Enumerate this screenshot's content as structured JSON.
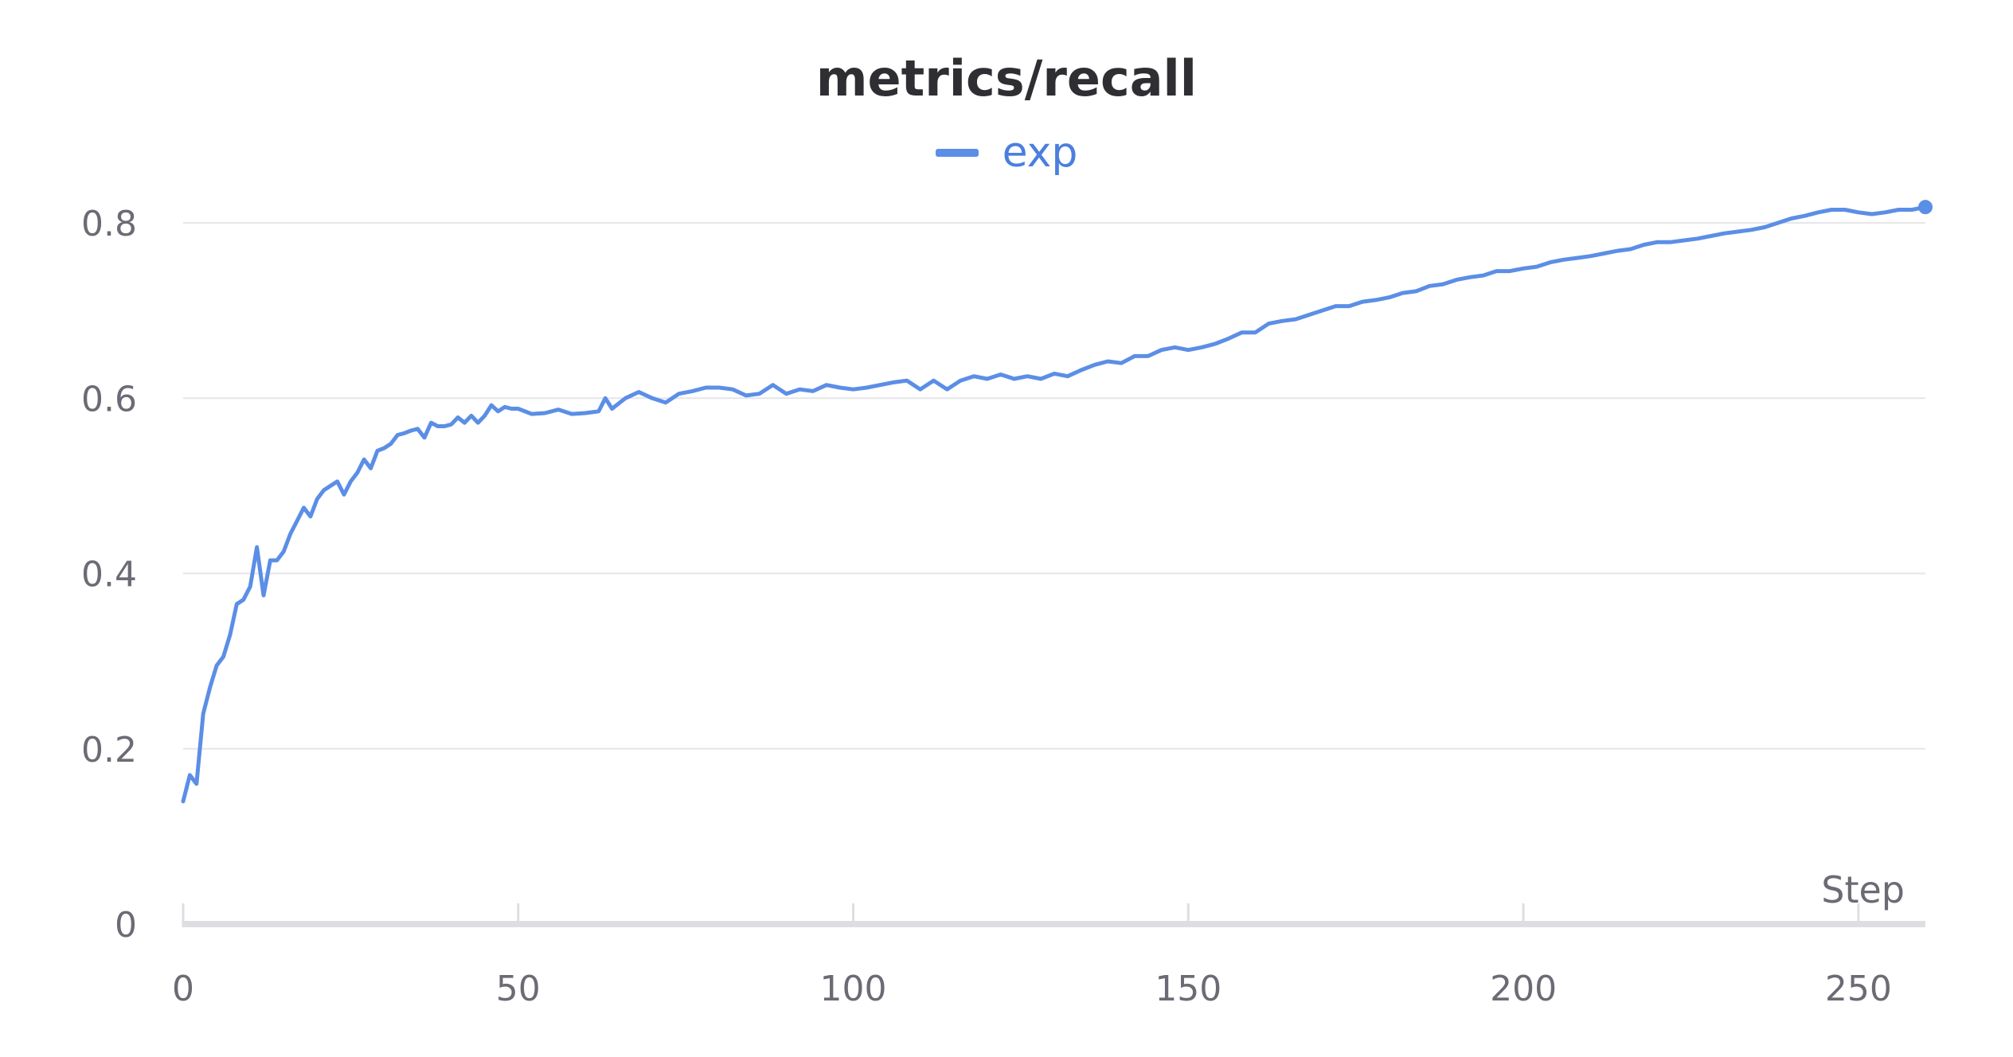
{
  "chart_data": {
    "type": "line",
    "title": "metrics/recall",
    "xlabel": "Step",
    "ylabel": "",
    "xlim": [
      0,
      260
    ],
    "ylim": [
      0,
      0.8
    ],
    "x_ticks": [
      0,
      50,
      100,
      150,
      200,
      250
    ],
    "y_ticks": [
      0,
      0.2,
      0.4,
      0.6,
      0.8
    ],
    "x_tick_labels": [
      "0",
      "50",
      "100",
      "150",
      "200",
      "250"
    ],
    "y_tick_labels": [
      "0",
      "0.2",
      "0.4",
      "0.6",
      "0.8"
    ],
    "legend_position": "top-center",
    "grid": true,
    "series": [
      {
        "name": "exp",
        "color": "#5b8ee6",
        "x": [
          0,
          1,
          2,
          3,
          4,
          5,
          6,
          7,
          8,
          9,
          10,
          11,
          12,
          13,
          14,
          15,
          16,
          17,
          18,
          19,
          20,
          21,
          22,
          23,
          24,
          25,
          26,
          27,
          28,
          29,
          30,
          31,
          32,
          33,
          34,
          35,
          36,
          37,
          38,
          39,
          40,
          41,
          42,
          43,
          44,
          45,
          46,
          47,
          48,
          49,
          50,
          52,
          54,
          56,
          58,
          60,
          62,
          63,
          64,
          66,
          68,
          70,
          72,
          74,
          76,
          78,
          80,
          82,
          84,
          86,
          88,
          90,
          92,
          94,
          96,
          98,
          100,
          102,
          104,
          106,
          108,
          110,
          112,
          114,
          116,
          118,
          120,
          122,
          124,
          126,
          128,
          130,
          132,
          134,
          136,
          138,
          140,
          142,
          144,
          146,
          148,
          150,
          152,
          154,
          156,
          158,
          160,
          162,
          164,
          166,
          168,
          170,
          172,
          174,
          176,
          178,
          180,
          182,
          184,
          186,
          188,
          190,
          192,
          194,
          196,
          198,
          200,
          202,
          204,
          206,
          208,
          210,
          212,
          214,
          216,
          218,
          220,
          222,
          224,
          226,
          228,
          230,
          232,
          234,
          236,
          238,
          240,
          242,
          244,
          246,
          248,
          250,
          252,
          254,
          256,
          258,
          260
        ],
        "y": [
          0.14,
          0.17,
          0.16,
          0.24,
          0.27,
          0.295,
          0.305,
          0.33,
          0.365,
          0.37,
          0.385,
          0.43,
          0.375,
          0.415,
          0.415,
          0.425,
          0.445,
          0.46,
          0.475,
          0.465,
          0.485,
          0.495,
          0.5,
          0.505,
          0.49,
          0.505,
          0.515,
          0.53,
          0.52,
          0.54,
          0.543,
          0.548,
          0.558,
          0.56,
          0.563,
          0.565,
          0.555,
          0.572,
          0.568,
          0.568,
          0.57,
          0.578,
          0.572,
          0.58,
          0.572,
          0.58,
          0.592,
          0.585,
          0.59,
          0.588,
          0.588,
          0.582,
          0.583,
          0.587,
          0.582,
          0.583,
          0.585,
          0.6,
          0.588,
          0.6,
          0.607,
          0.6,
          0.595,
          0.605,
          0.608,
          0.612,
          0.612,
          0.61,
          0.603,
          0.605,
          0.615,
          0.605,
          0.61,
          0.608,
          0.615,
          0.612,
          0.61,
          0.612,
          0.615,
          0.618,
          0.62,
          0.61,
          0.62,
          0.61,
          0.62,
          0.625,
          0.622,
          0.627,
          0.622,
          0.625,
          0.622,
          0.628,
          0.625,
          0.632,
          0.638,
          0.642,
          0.64,
          0.648,
          0.648,
          0.655,
          0.658,
          0.655,
          0.658,
          0.662,
          0.668,
          0.675,
          0.675,
          0.685,
          0.688,
          0.69,
          0.695,
          0.7,
          0.705,
          0.705,
          0.71,
          0.712,
          0.715,
          0.72,
          0.722,
          0.728,
          0.73,
          0.735,
          0.738,
          0.74,
          0.745,
          0.745,
          0.748,
          0.75,
          0.755,
          0.758,
          0.76,
          0.762,
          0.765,
          0.768,
          0.77,
          0.775,
          0.778,
          0.778,
          0.78,
          0.782,
          0.785,
          0.788,
          0.79,
          0.792,
          0.795,
          0.8,
          0.805,
          0.808,
          0.812,
          0.815,
          0.815,
          0.812,
          0.81,
          0.812,
          0.815,
          0.815,
          0.818
        ]
      }
    ]
  }
}
